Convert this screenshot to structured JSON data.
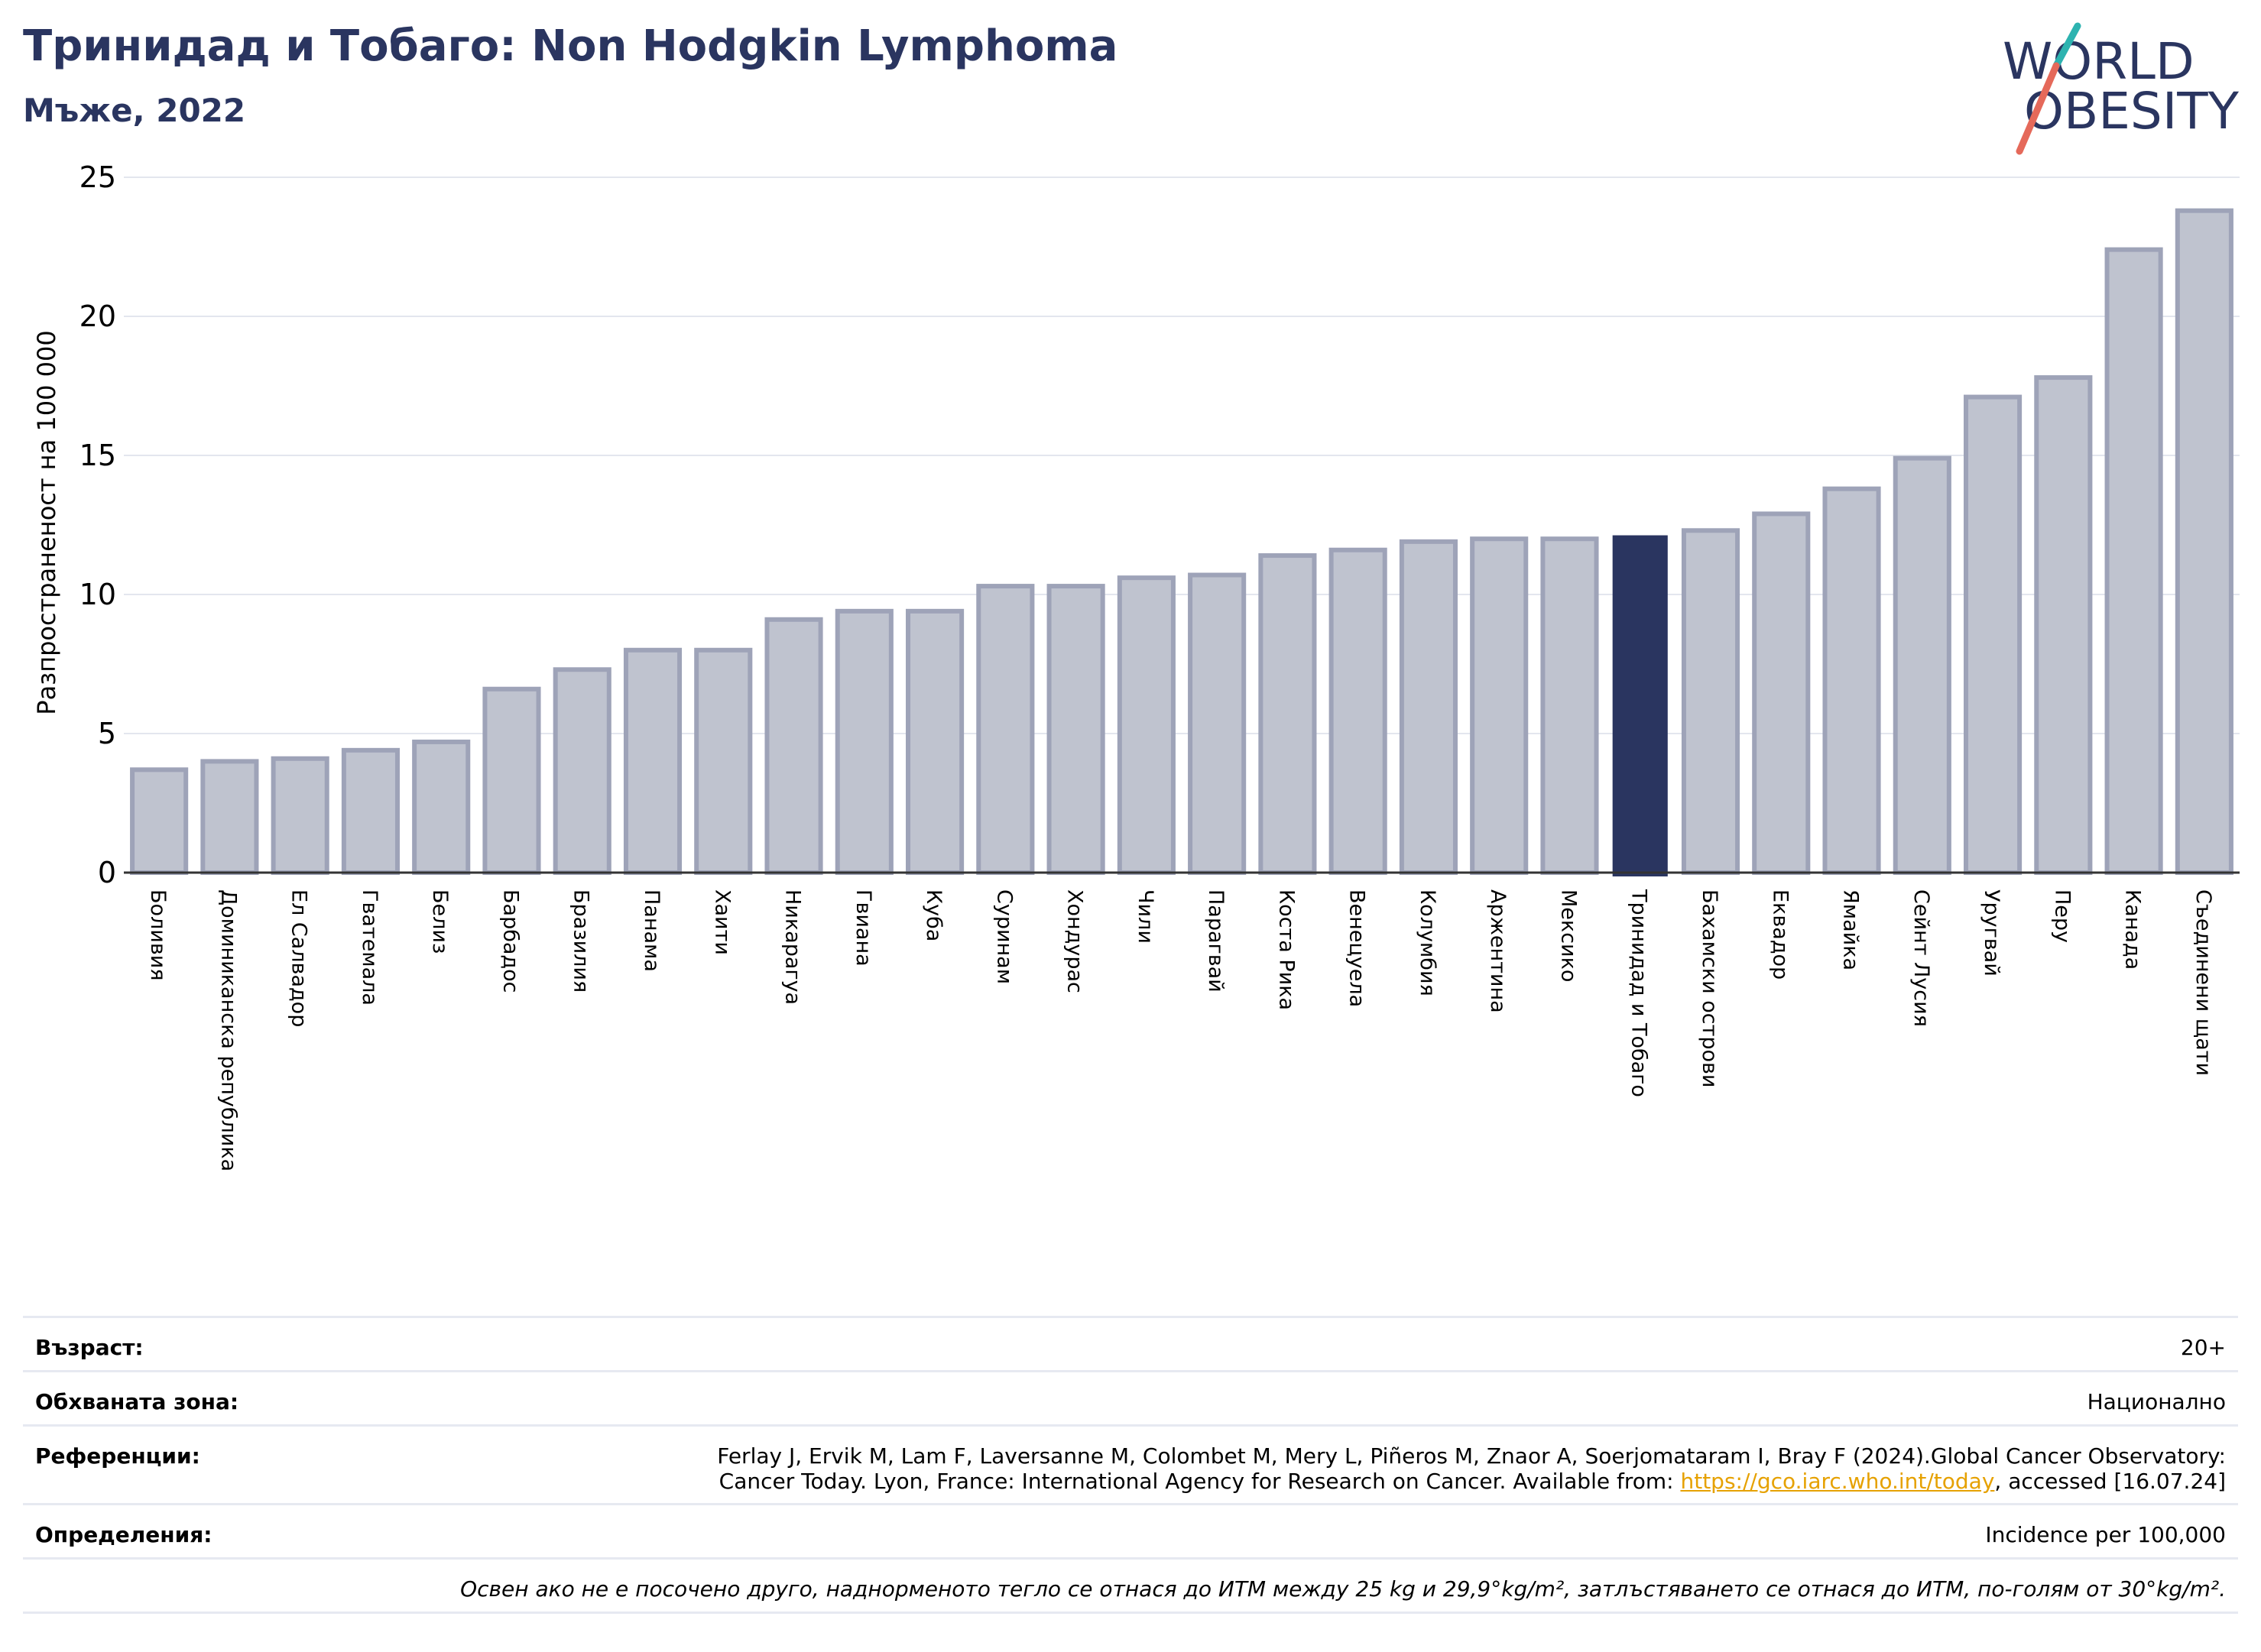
{
  "header": {
    "title": "Тринидад и Тобаго: Non Hodgkin Lymphoma",
    "subtitle": "Мъже, 2022"
  },
  "logo": {
    "line1": "WORLD",
    "line2": "OBESITY"
  },
  "colors": {
    "primary": "#2a3560",
    "bar_fill": "#bfc3cf",
    "bar_stroke": "#9ea3b8",
    "accent_teal": "#2db3b0",
    "accent_red": "#e5695a",
    "link": "#e6a100"
  },
  "chart_data": {
    "type": "bar",
    "ylabel": "Разпространеност  на 100 000",
    "ylim": [
      0,
      25
    ],
    "yticks": [
      0,
      5,
      10,
      15,
      20,
      25
    ],
    "highlight": "Тринидад и Тобаго",
    "categories": [
      "Боливия",
      "Доминиканска република",
      "Ел Салвадор",
      "Гватемала",
      "Белиз",
      "Барбадос",
      "Бразилия",
      "Панама",
      "Хаити",
      "Никарагуа",
      "Гвиана",
      "Куба",
      "Суринам",
      "Хондурас",
      "Чили",
      "Парагвай",
      "Коста Рика",
      "Венецуела",
      "Колумбия",
      "Аржентина",
      "Мексико",
      "Тринидад и Тобаго",
      "Бахамски острови",
      "Еквадор",
      "Ямайка",
      "Сейнт Лусия",
      "Уругвай",
      "Перу",
      "Канада",
      "Съединени щати"
    ],
    "values": [
      3.7,
      4.0,
      4.1,
      4.4,
      4.7,
      6.6,
      7.3,
      8.0,
      8.0,
      9.1,
      9.4,
      9.4,
      10.3,
      10.3,
      10.6,
      10.7,
      11.4,
      11.6,
      11.9,
      12.0,
      12.0,
      12.1,
      12.3,
      12.9,
      13.8,
      14.9,
      17.1,
      17.8,
      22.4,
      23.8
    ],
    "grid": true
  },
  "info": {
    "age_label": "Възраст:",
    "age_value": "20+",
    "area_label": "Обхваната зона:",
    "area_value": "Национално",
    "refs_label": "Референции:",
    "refs_line1": "Ferlay J, Ervik M, Lam F, Laversanne M, Colombet M, Mery L, Piñeros M, Znaor A, Soerjomataram I, Bray F (2024).Global Cancer Observatory:",
    "refs_line2_pre": "Cancer Today. Lyon, France: International Agency for Research on Cancer. Available from: ",
    "refs_link": "https://gco.iarc.who.int/today",
    "refs_line2_post": ", accessed [16.07.24]",
    "defs_label": "Определения:",
    "defs_value": "Incidence per 100,000",
    "note": "Освен ако не е посочено друго, наднорменото тегло се отнася до ИТМ между 25 kg и 29,9°kg/m², затлъстяването се отнася до ИТМ, по-голям от 30°kg/m²."
  }
}
